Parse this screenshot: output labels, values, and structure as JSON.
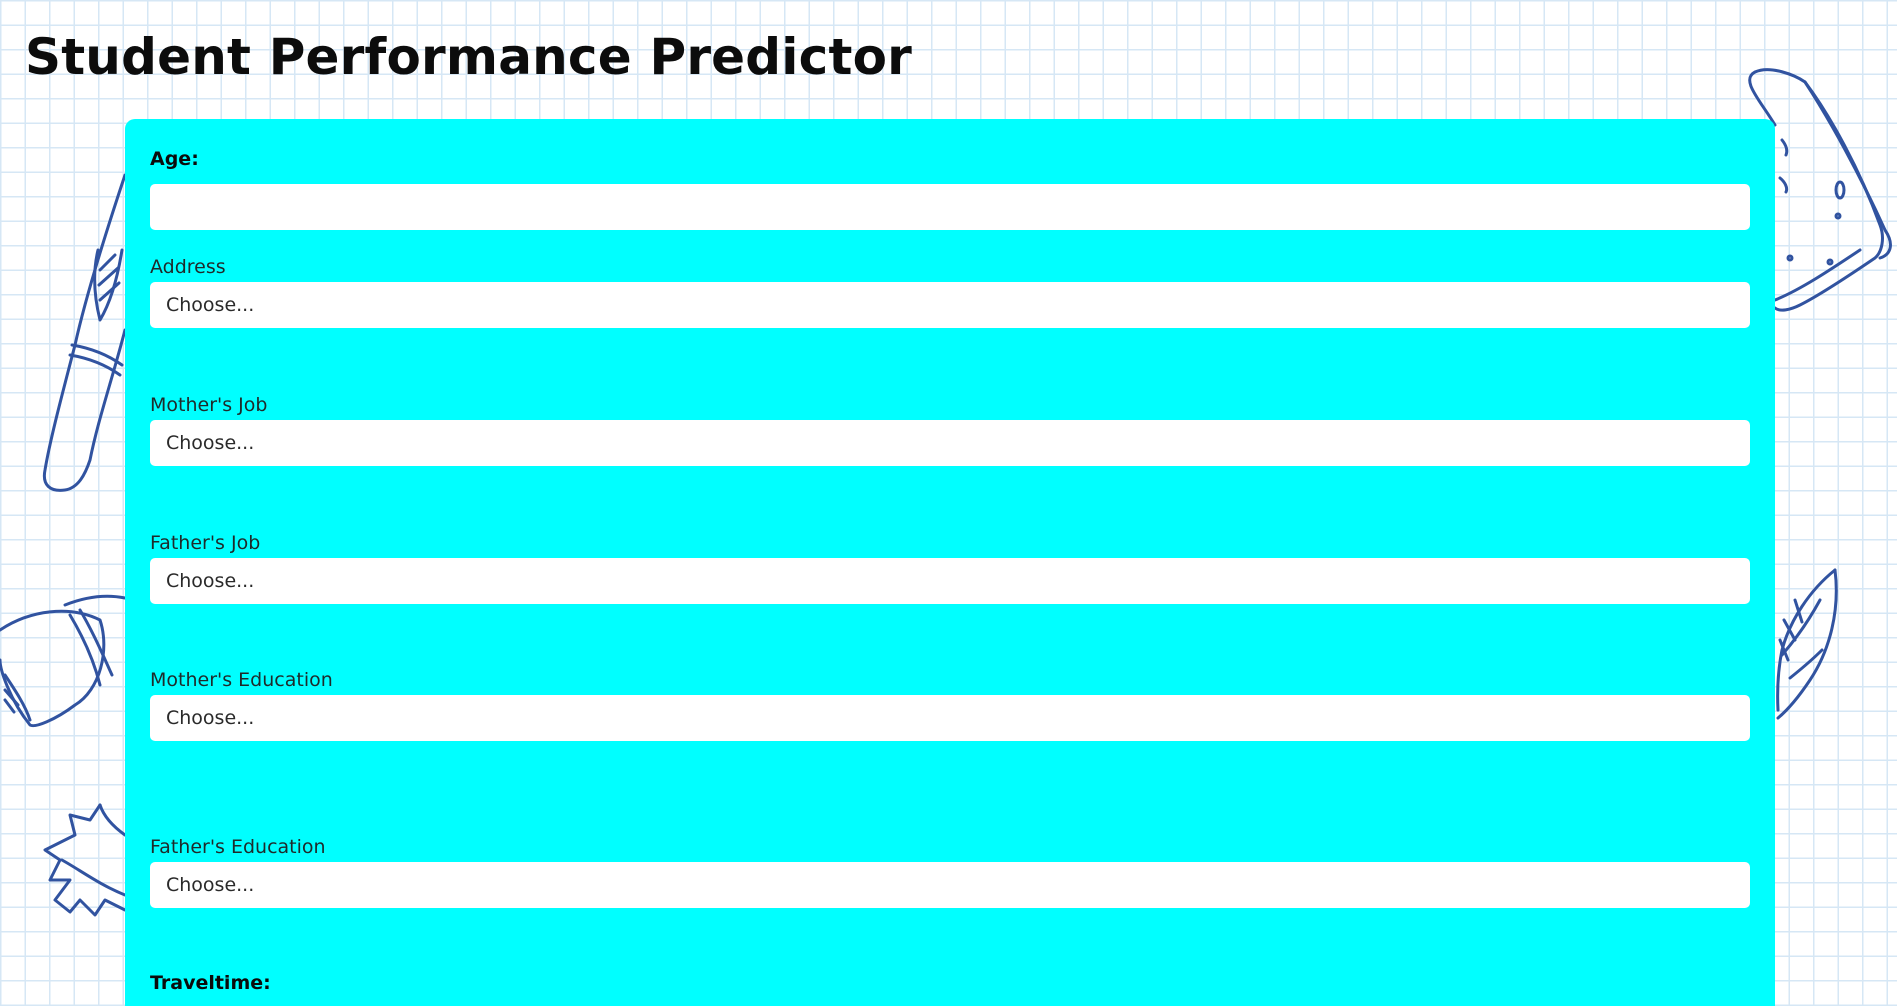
{
  "page": {
    "title": "Student Performance Predictor",
    "accent_color": "#00ffff",
    "doodle_color": "#3153a0"
  },
  "form": {
    "age": {
      "label": "Age:",
      "value": "",
      "placeholder": ""
    },
    "address": {
      "label": "Address",
      "selected": "Choose..."
    },
    "mothers_job": {
      "label": "Mother's Job",
      "selected": "Choose..."
    },
    "fathers_job": {
      "label": "Father's Job",
      "selected": "Choose..."
    },
    "mothers_education": {
      "label": "Mother's Education",
      "selected": "Choose..."
    },
    "fathers_education": {
      "label": "Father's Education",
      "selected": "Choose..."
    },
    "traveltime": {
      "label": "Traveltime:"
    }
  },
  "decorations": {
    "icons": [
      "pencil-doodle-icon",
      "eraser-doodle-icon",
      "leaf-doodle-icon",
      "sharpener-doodle-icon",
      "maple-leaf-doodle-icon"
    ]
  }
}
